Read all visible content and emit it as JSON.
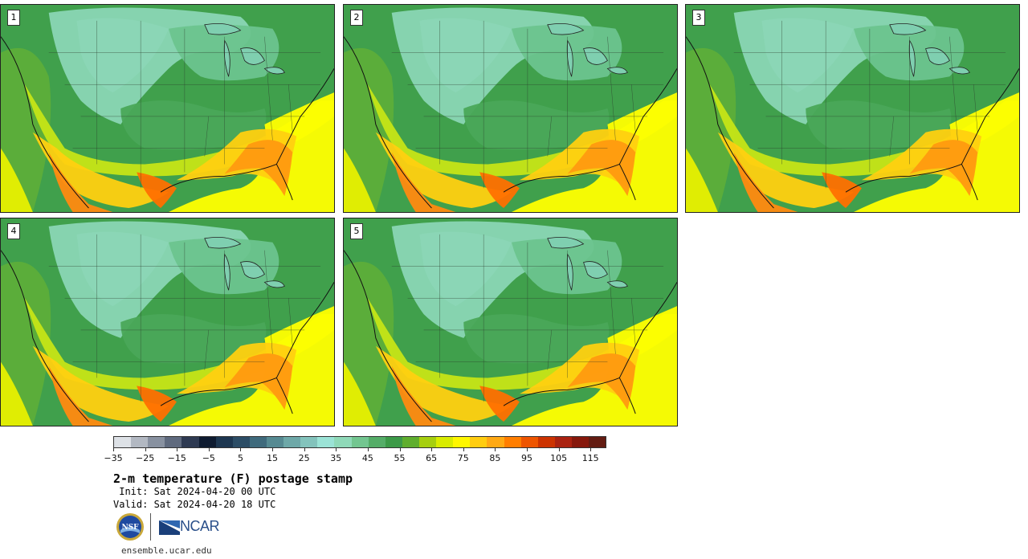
{
  "panels": [
    {
      "label": "1"
    },
    {
      "label": "2"
    },
    {
      "label": "3"
    },
    {
      "label": "4"
    },
    {
      "label": "5"
    }
  ],
  "colorbar": {
    "colors": [
      "#dde1e6",
      "#b2b8c2",
      "#8891a0",
      "#5f6a7e",
      "#2e3a52",
      "#0e1b30",
      "#1d3650",
      "#2c4d66",
      "#3f6a7c",
      "#568a92",
      "#6ea8a8",
      "#83c3bc",
      "#9be3d6",
      "#8fd9b8",
      "#73c690",
      "#55ad68",
      "#3c9a48",
      "#5fae2e",
      "#a6cf0f",
      "#d9ec00",
      "#fff700",
      "#ffcd10",
      "#ffa914",
      "#ff7e00",
      "#ee5500",
      "#cc3300",
      "#aa2210",
      "#86180c",
      "#631c12"
    ],
    "ticks": [
      "−35",
      "−25",
      "−15",
      "−5",
      "5",
      "15",
      "25",
      "35",
      "45",
      "55",
      "65",
      "75",
      "85",
      "95",
      "105",
      "115"
    ],
    "tick_min": -35,
    "tick_max": 115,
    "range_min": -35,
    "range_max": 120
  },
  "title": "2-m temperature (F) postage stamp",
  "init": " Init: Sat 2024-04-20 00 UTC",
  "valid": "Valid: Sat 2024-04-20 18 UTC",
  "logos": {
    "nsf": "NSF",
    "ncar": "NCAR"
  },
  "website": "ensemble.ucar.edu"
}
